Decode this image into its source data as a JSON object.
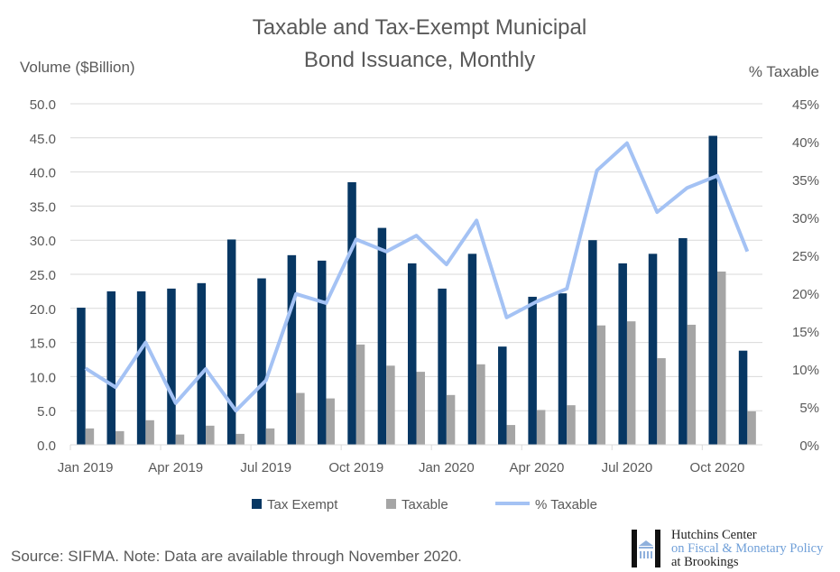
{
  "chart_data": {
    "type": "bar",
    "title": "Taxable and Tax-Exempt Municipal Bond Issuance, Monthly",
    "title_lines": [
      "Taxable and Tax-Exempt Municipal",
      "Bond Issuance, Monthly"
    ],
    "ylabel": "Volume ($Billion)",
    "y2label": "% Taxable",
    "ylim": [
      0,
      50
    ],
    "y2lim": [
      0,
      45
    ],
    "yticks": [
      "0.0",
      "5.0",
      "10.0",
      "15.0",
      "20.0",
      "25.0",
      "30.0",
      "35.0",
      "40.0",
      "45.0",
      "50.0"
    ],
    "y2ticks": [
      "0%",
      "5%",
      "10%",
      "15%",
      "20%",
      "25%",
      "30%",
      "35%",
      "40%",
      "45%"
    ],
    "grid": true,
    "legend_position": "bottom",
    "categories": [
      "Jan 2019",
      "Feb 2019",
      "Mar 2019",
      "Apr 2019",
      "May 2019",
      "Jun 2019",
      "Jul 2019",
      "Aug 2019",
      "Sep 2019",
      "Oct 2019",
      "Nov 2019",
      "Dec 2019",
      "Jan 2020",
      "Feb 2020",
      "Mar 2020",
      "Apr 2020",
      "May 2020",
      "Jun 2020",
      "Jul 2020",
      "Aug 2020",
      "Sep 2020",
      "Oct 2020",
      "Nov 2020"
    ],
    "xticklabels": [
      "Jan 2019",
      "Apr 2019",
      "Jul 2019",
      "Oct 2019",
      "Jan 2020",
      "Apr 2020",
      "Jul 2020",
      "Oct 2020"
    ],
    "series": [
      {
        "name": "Tax Exempt",
        "type": "bar",
        "axis": "left",
        "color": "#073763",
        "values": [
          20.1,
          22.5,
          22.5,
          22.9,
          23.7,
          30.1,
          24.4,
          27.8,
          27.0,
          38.5,
          31.8,
          26.6,
          22.9,
          28.0,
          14.4,
          21.7,
          22.2,
          30.0,
          26.6,
          28.0,
          30.3,
          45.3,
          13.8
        ]
      },
      {
        "name": "Taxable",
        "type": "bar",
        "axis": "right_none",
        "color": "#a5a5a5",
        "values": [
          2.4,
          2.0,
          3.6,
          1.5,
          2.8,
          1.6,
          2.4,
          7.6,
          6.8,
          14.7,
          11.6,
          10.7,
          7.3,
          11.8,
          2.9,
          5.1,
          5.8,
          17.5,
          18.1,
          12.7,
          17.6,
          25.4,
          4.9
        ]
      },
      {
        "name": "% Taxable",
        "type": "line",
        "axis": "right",
        "color": "#a4c2f4",
        "values": [
          10.1,
          7.6,
          13.5,
          5.5,
          10.0,
          4.5,
          8.5,
          19.9,
          18.7,
          27.1,
          25.5,
          27.6,
          23.8,
          29.6,
          16.8,
          18.9,
          20.6,
          36.2,
          39.8,
          30.7,
          33.9,
          35.5,
          25.5
        ]
      }
    ]
  },
  "source": "Source: SIFMA. Note: Data are available through November 2020.",
  "logo": {
    "line1": "Hutchins Center",
    "line2": "on Fiscal & Monetary Policy",
    "line3": "at Brookings"
  }
}
